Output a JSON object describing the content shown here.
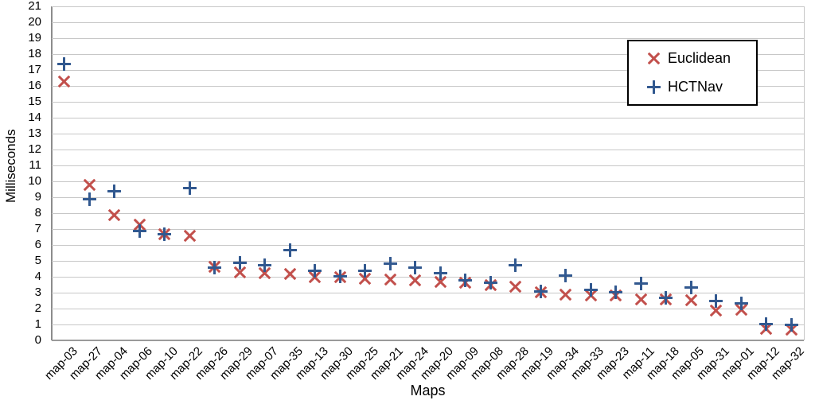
{
  "chart_data": {
    "type": "scatter",
    "title": "",
    "xlabel": "Maps",
    "ylabel": "Milliseconds",
    "ylim": [
      0,
      21
    ],
    "ytick_step": 1,
    "grid": "horizontal",
    "legend_position": "top-right-inside",
    "categories": [
      "map-03",
      "map-27",
      "map-04",
      "map-06",
      "map-10",
      "map-22",
      "map-26",
      "map-29",
      "map-07",
      "map-35",
      "map-13",
      "map-30",
      "map-25",
      "map-21",
      "map-24",
      "map-20",
      "map-09",
      "map-08",
      "map-28",
      "map-19",
      "map-34",
      "map-33",
      "map-23",
      "map-11",
      "map-18",
      "map-05",
      "map-31",
      "map-01",
      "map-12",
      "map-32"
    ],
    "series": [
      {
        "name": "Euclidean",
        "marker": "x",
        "color": "#c2504c",
        "values": [
          16.3,
          9.8,
          7.9,
          7.3,
          6.7,
          6.6,
          4.65,
          4.3,
          4.25,
          4.2,
          4.0,
          4.0,
          3.9,
          3.85,
          3.8,
          3.7,
          3.65,
          3.5,
          3.4,
          3.05,
          2.9,
          2.85,
          2.85,
          2.6,
          2.6,
          2.55,
          1.9,
          1.95,
          0.75,
          0.7
        ]
      },
      {
        "name": "HCTNav",
        "marker": "plus",
        "color": "#31588f",
        "values": [
          17.4,
          8.9,
          9.4,
          6.9,
          6.7,
          9.6,
          4.6,
          4.9,
          4.75,
          5.7,
          4.4,
          4.05,
          4.4,
          4.85,
          4.6,
          4.25,
          3.8,
          3.65,
          4.75,
          3.1,
          4.1,
          3.2,
          3.05,
          3.6,
          2.7,
          3.35,
          2.5,
          2.35,
          1.05,
          1.0
        ]
      }
    ]
  },
  "styles": {
    "gridline_color": "#c7c7c7",
    "axis_color": "#8c8c8c",
    "baseline_color": "#9a9a9a",
    "text_color": "#000000",
    "legend_border_color": "#000000",
    "background": "#ffffff"
  }
}
